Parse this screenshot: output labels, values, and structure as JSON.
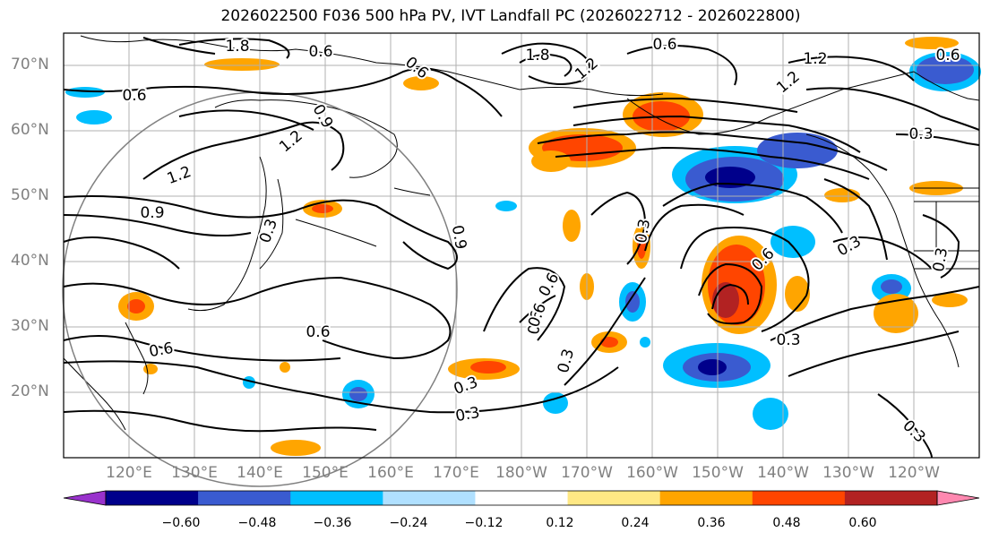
{
  "title": "2026022500 F036 500 hPa PV, IVT Landfall PC (2026022712 - 2026022800)",
  "lat_labels": [
    "70°N",
    "60°N",
    "50°N",
    "40°N",
    "30°N",
    "20°N"
  ],
  "lon_labels": [
    "120°E",
    "130°E",
    "140°E",
    "150°E",
    "160°E",
    "170°E",
    "180°W",
    "170°W",
    "160°W",
    "150°W",
    "140°W",
    "130°W",
    "120°W"
  ],
  "colorbar": {
    "ticks": [
      "−0.60",
      "−0.48",
      "−0.36",
      "−0.24",
      "−0.12",
      "0.12",
      "0.24",
      "0.36",
      "0.48",
      "0.60"
    ],
    "colors": [
      "#9932cc",
      "#00008b",
      "#3a5bd0",
      "#00bfff",
      "#b0e0ff",
      "#ffffff",
      "#ffe884",
      "#ffa500",
      "#ff4500",
      "#b22222",
      "#ff88b0"
    ]
  },
  "contour_labels": [
    {
      "text": "0.6"
    },
    {
      "text": "1.2"
    },
    {
      "text": "0.9"
    },
    {
      "text": "0.6"
    },
    {
      "text": "0.3"
    },
    {
      "text": "0.9"
    },
    {
      "text": "0.6"
    },
    {
      "text": "0.3"
    },
    {
      "text": "0.6"
    },
    {
      "text": "0.6"
    },
    {
      "text": "1.8"
    },
    {
      "text": "1.2"
    },
    {
      "text": "0.6"
    },
    {
      "text": "1.2"
    },
    {
      "text": "0.3"
    },
    {
      "text": "0.6"
    },
    {
      "text": "1.2"
    },
    {
      "text": "0.3"
    },
    {
      "text": "0.6"
    },
    {
      "text": "0.6"
    },
    {
      "text": "0.3"
    },
    {
      "text": "0.3"
    },
    {
      "text": "0.3"
    },
    {
      "text": "0.3"
    },
    {
      "text": "0.3"
    },
    {
      "text": "0.3"
    },
    {
      "text": "0.6"
    },
    {
      "text": "0.6"
    },
    {
      "text": "0.9"
    },
    {
      "text": "1.2"
    },
    {
      "text": "1.8"
    }
  ]
}
